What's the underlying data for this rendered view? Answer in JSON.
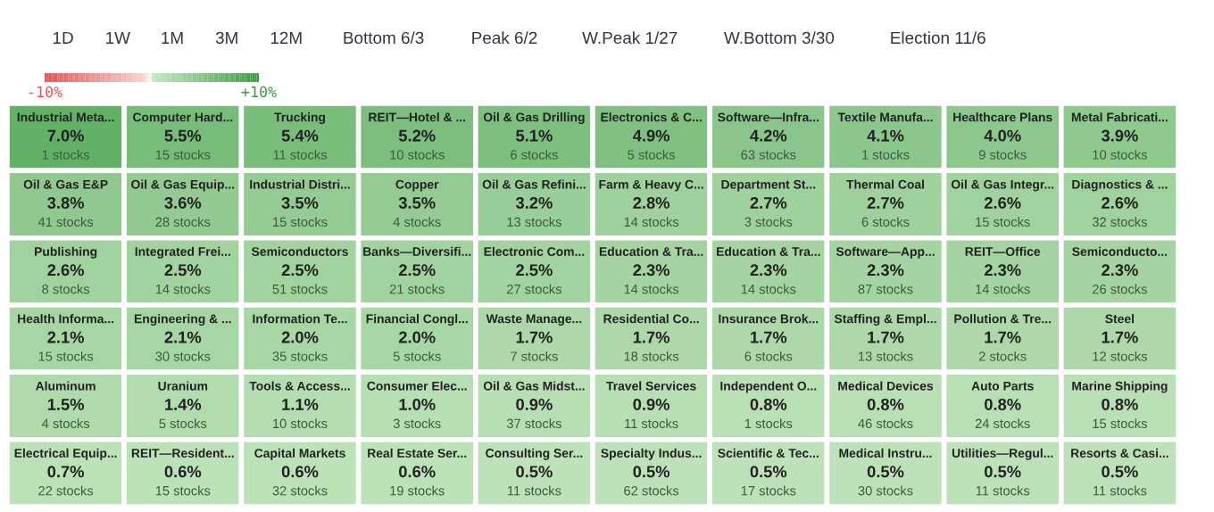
{
  "chart_data": {
    "type": "heatmap",
    "annotations": [
      "1D",
      "1W",
      "1M",
      "3M",
      "12M",
      "Bottom 6/3",
      "Peak 6/2",
      "W.Peak 1/27",
      "W.Bottom 3/30",
      "Election 11/6"
    ],
    "categories": [
      null,
      null,
      null,
      null,
      null,
      null,
      null,
      null,
      null,
      null
    ],
    "y_categories": [
      null,
      null,
      null,
      null,
      null,
      null
    ],
    "clim": [
      -10,
      10
    ],
    "cticks": [
      {
        "value": -10,
        "label": "-10%"
      },
      {
        "value": 10,
        "label": "+10%"
      }
    ],
    "cells": [
      [
        7.0,
        5.5,
        5.4,
        5.2,
        5.1,
        4.9,
        4.2,
        4.1,
        4.0,
        3.9
      ],
      [
        3.8,
        3.6,
        3.5,
        3.5,
        3.2,
        2.8,
        2.7,
        2.7,
        2.6,
        2.6
      ],
      [
        2.6,
        2.5,
        2.5,
        2.5,
        2.5,
        2.3,
        2.3,
        2.3,
        2.3,
        2.3
      ],
      [
        2.1,
        2.1,
        2.0,
        2.0,
        1.7,
        1.7,
        1.7,
        1.7,
        1.7,
        1.7
      ],
      [
        1.5,
        1.4,
        1.1,
        1.0,
        0.9,
        0.9,
        0.8,
        0.8,
        0.8,
        0.8
      ],
      [
        0.7,
        0.6,
        0.6,
        0.6,
        0.5,
        0.5,
        0.5,
        0.5,
        0.5,
        0.5
      ]
    ],
    "cell_labels": [
      [
        "Industrial Meta...\n7.0%\n1 stocks",
        "Computer Hard...\n5.5%\n15 stocks",
        "Trucking\n5.4%\n11 stocks",
        "REIT—Hotel & ...\n5.2%\n10 stocks",
        "Oil & Gas Drilling\n5.1%\n6 stocks",
        "Electronics & C...\n4.9%\n5 stocks",
        "Software—Infra...\n4.2%\n63 stocks",
        "Textile Manufa...\n4.1%\n1 stocks",
        "Healthcare Plans\n4.0%\n9 stocks",
        "Metal Fabricati...\n3.9%\n10 stocks"
      ],
      [
        "Oil & Gas E&P\n3.8%\n41 stocks",
        "Oil & Gas Equip...\n3.6%\n28 stocks",
        "Industrial Distri...\n3.5%\n15 stocks",
        "Copper\n3.5%\n4 stocks",
        "Oil & Gas Refini...\n3.2%\n13 stocks",
        "Farm & Heavy C...\n2.8%\n14 stocks",
        "Department St...\n2.7%\n3 stocks",
        "Thermal Coal\n2.7%\n6 stocks",
        "Oil & Gas Integr...\n2.6%\n15 stocks",
        "Diagnostics & ...\n2.6%\n32 stocks"
      ],
      [
        "Publishing\n2.6%\n8 stocks",
        "Integrated Frei...\n2.5%\n14 stocks",
        "Semiconductors\n2.5%\n51 stocks",
        "Banks—Diversifi...\n2.5%\n21 stocks",
        "Electronic Com...\n2.5%\n27 stocks",
        "Education & Tra...\n2.3%\n14 stocks",
        "Education & Tra...\n2.3%\n14 stocks",
        "Software—App...\n2.3%\n87 stocks",
        "REIT—Office\n2.3%\n14 stocks",
        "Semiconducto...\n2.3%\n26 stocks"
      ],
      [
        "Health Informa...\n2.1%\n15 stocks",
        "Engineering & ...\n2.1%\n30 stocks",
        "Information Te...\n2.0%\n35 stocks",
        "Financial Congl...\n2.0%\n5 stocks",
        "Waste Manage...\n1.7%\n7 stocks",
        "Residential Co...\n1.7%\n18 stocks",
        "Insurance Brok...\n1.7%\n6 stocks",
        "Staffing & Empl...\n1.7%\n13 stocks",
        "Pollution & Tre...\n1.7%\n2 stocks",
        "Steel\n1.7%\n12 stocks"
      ],
      [
        "Aluminum\n1.5%\n4 stocks",
        "Uranium\n1.4%\n5 stocks",
        "Tools & Access...\n1.1%\n10 stocks",
        "Consumer Elec...\n1.0%\n3 stocks",
        "Oil & Gas Midst...\n0.9%\n37 stocks",
        "Travel Services\n0.9%\n11 stocks",
        "Independent O...\n0.8%\n1 stocks",
        "Medical Devices\n0.8%\n46 stocks",
        "Auto Parts\n0.8%\n24 stocks",
        "Marine Shipping\n0.8%\n15 stocks"
      ],
      [
        "Electrical Equip...\n0.7%\n22 stocks",
        "REIT—Resident...\n0.6%\n15 stocks",
        "Capital Markets\n0.6%\n32 stocks",
        "Real Estate Ser...\n0.6%\n19 stocks",
        "Consulting Ser...\n0.5%\n11 stocks",
        "Specialty Indus...\n0.5%\n62 stocks",
        "Scientific & Tec...\n0.5%\n17 stocks",
        "Medical Instru...\n0.5%\n30 stocks",
        "Utilities—Regul...\n0.5%\n11 stocks",
        "Resorts & Casi...\n0.5%\n11 stocks"
      ]
    ]
  }
}
